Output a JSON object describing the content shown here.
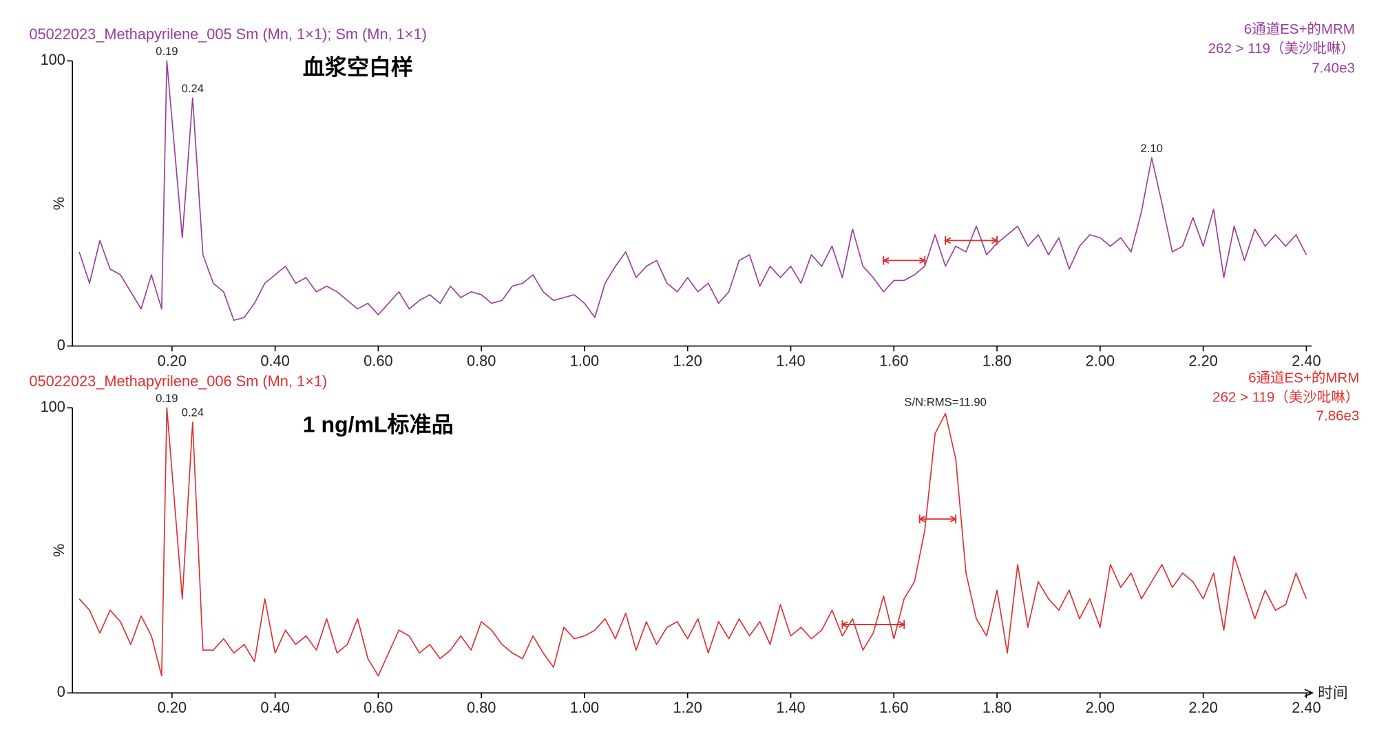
{
  "chart_data": [
    {
      "type": "line",
      "title": "05022023_Methapyrilene_005 Sm (Mn, 1×1); Sm (Mn, 1×1)",
      "info": [
        "6通道ES+的MRM",
        "262 > 119（美沙吡啉）",
        "7.40e3"
      ],
      "sample_label": "血浆空白样",
      "y_label": "%",
      "xlim": [
        0,
        2.4
      ],
      "ylim": [
        0,
        100
      ],
      "yticks": [
        0,
        100
      ],
      "xticks": [
        {
          "value": 0.2,
          "label": "0.20"
        },
        {
          "value": 0.4,
          "label": "0.40"
        },
        {
          "value": 0.6,
          "label": "0.60"
        },
        {
          "value": 0.8,
          "label": "0.80"
        },
        {
          "value": 1.0,
          "label": "1.00"
        },
        {
          "value": 1.2,
          "label": "1.20"
        },
        {
          "value": 1.4,
          "label": "1.40"
        },
        {
          "value": 1.6,
          "label": "1.60"
        },
        {
          "value": 1.8,
          "label": "1.80"
        },
        {
          "value": 2.0,
          "label": "2.00"
        },
        {
          "value": 2.2,
          "label": "2.20"
        },
        {
          "value": 2.4,
          "label": "2.40"
        }
      ],
      "peak_labels": [
        {
          "value": 0.19,
          "label": "0.19"
        },
        {
          "value": 0.24,
          "label": "0.24"
        },
        {
          "value": 2.1,
          "label": "2.10"
        }
      ],
      "annotations": [],
      "intervals": [
        {
          "x": [
            1.58,
            1.66
          ],
          "y": 30
        },
        {
          "x": [
            1.7,
            1.8
          ],
          "y": 37
        }
      ],
      "interval_color": "#e03030",
      "x": [
        0.02,
        0.04,
        0.06,
        0.08,
        0.1,
        0.12,
        0.14,
        0.16,
        0.18,
        0.19,
        0.22,
        0.24,
        0.26,
        0.28,
        0.3,
        0.32,
        0.34,
        0.36,
        0.38,
        0.4,
        0.42,
        0.44,
        0.46,
        0.48,
        0.5,
        0.52,
        0.54,
        0.56,
        0.58,
        0.6,
        0.62,
        0.64,
        0.66,
        0.68,
        0.7,
        0.72,
        0.74,
        0.76,
        0.78,
        0.8,
        0.82,
        0.84,
        0.86,
        0.88,
        0.9,
        0.92,
        0.94,
        0.96,
        0.98,
        1,
        1.02,
        1.04,
        1.06,
        1.08,
        1.1,
        1.12,
        1.14,
        1.16,
        1.18,
        1.2,
        1.22,
        1.24,
        1.26,
        1.28,
        1.3,
        1.32,
        1.34,
        1.36,
        1.38,
        1.4,
        1.42,
        1.44,
        1.46,
        1.48,
        1.5,
        1.52,
        1.54,
        1.56,
        1.58,
        1.6,
        1.62,
        1.64,
        1.66,
        1.68,
        1.7,
        1.72,
        1.74,
        1.76,
        1.78,
        1.8,
        1.82,
        1.84,
        1.86,
        1.88,
        1.9,
        1.92,
        1.94,
        1.96,
        1.98,
        2,
        2.02,
        2.04,
        2.06,
        2.08,
        2.1,
        2.12,
        2.14,
        2.16,
        2.18,
        2.2,
        2.22,
        2.24,
        2.26,
        2.28,
        2.3,
        2.32,
        2.34,
        2.36,
        2.38,
        2.4
      ],
      "series": [
        {
          "color": "#9a3d9e",
          "values": [
            33,
            22,
            37,
            27,
            25,
            19,
            13,
            25,
            13,
            100,
            38,
            87,
            32,
            22,
            19,
            9,
            10,
            15,
            22,
            25,
            28,
            22,
            24,
            19,
            21,
            19,
            16,
            13,
            15,
            11,
            15,
            19,
            13,
            16,
            18,
            15,
            21,
            17,
            19,
            18,
            15,
            16,
            21,
            22,
            25,
            19,
            16,
            17,
            18,
            15,
            10,
            22,
            28,
            33,
            24,
            28,
            30,
            22,
            19,
            24,
            19,
            22,
            15,
            19,
            30,
            32,
            21,
            28,
            24,
            28,
            22,
            32,
            28,
            35,
            24,
            41,
            28,
            24,
            19,
            23,
            23,
            25,
            28,
            39,
            28,
            35,
            33,
            42,
            32,
            36,
            39,
            42,
            35,
            39,
            32,
            38,
            27,
            35,
            39,
            38,
            35,
            38,
            33,
            47,
            66,
            50,
            33,
            35,
            45,
            35,
            48,
            24,
            42,
            30,
            41,
            35,
            39,
            35,
            39,
            32
          ]
        }
      ]
    },
    {
      "type": "line",
      "title": "05022023_Methapyrilene_006 Sm (Mn, 1×1)",
      "info": [
        "6通道ES+的MRM",
        "262 > 119（美沙吡啉）",
        "7.86e3"
      ],
      "sample_label": "1 ng/mL标准品",
      "y_label": "%",
      "x_label": "时间",
      "xlim": [
        0,
        2.4
      ],
      "ylim": [
        0,
        100
      ],
      "yticks": [
        0,
        100
      ],
      "xticks": [
        {
          "value": 0.2,
          "label": "0.20"
        },
        {
          "value": 0.4,
          "label": "0.40"
        },
        {
          "value": 0.6,
          "label": "0.60"
        },
        {
          "value": 0.8,
          "label": "0.80"
        },
        {
          "value": 1.0,
          "label": "1.00"
        },
        {
          "value": 1.2,
          "label": "1.20"
        },
        {
          "value": 1.4,
          "label": "1.40"
        },
        {
          "value": 1.6,
          "label": "1.60"
        },
        {
          "value": 1.8,
          "label": "1.80"
        },
        {
          "value": 2.0,
          "label": "2.00"
        },
        {
          "value": 2.2,
          "label": "2.20"
        },
        {
          "value": 2.4,
          "label": "2.40"
        }
      ],
      "peak_labels": [
        {
          "value": 0.19,
          "label": "0.19"
        },
        {
          "value": 0.24,
          "label": "0.24"
        }
      ],
      "annotations": [
        "S/N:RMS=11.90"
      ],
      "intervals": [
        {
          "x": [
            1.5,
            1.62
          ],
          "y": 24
        },
        {
          "x": [
            1.65,
            1.72
          ],
          "y": 61
        }
      ],
      "interval_color": "#e03030",
      "x": [
        0.02,
        0.04,
        0.06,
        0.08,
        0.1,
        0.12,
        0.14,
        0.16,
        0.18,
        0.19,
        0.22,
        0.24,
        0.26,
        0.28,
        0.3,
        0.32,
        0.34,
        0.36,
        0.38,
        0.4,
        0.42,
        0.44,
        0.46,
        0.48,
        0.5,
        0.52,
        0.54,
        0.56,
        0.58,
        0.6,
        0.62,
        0.64,
        0.66,
        0.68,
        0.7,
        0.72,
        0.74,
        0.76,
        0.78,
        0.8,
        0.82,
        0.84,
        0.86,
        0.88,
        0.9,
        0.92,
        0.94,
        0.96,
        0.98,
        1,
        1.02,
        1.04,
        1.06,
        1.08,
        1.1,
        1.12,
        1.14,
        1.16,
        1.18,
        1.2,
        1.22,
        1.24,
        1.26,
        1.28,
        1.3,
        1.32,
        1.34,
        1.36,
        1.38,
        1.4,
        1.42,
        1.44,
        1.46,
        1.48,
        1.5,
        1.52,
        1.54,
        1.56,
        1.58,
        1.6,
        1.62,
        1.64,
        1.66,
        1.68,
        1.7,
        1.72,
        1.74,
        1.76,
        1.78,
        1.8,
        1.82,
        1.84,
        1.86,
        1.88,
        1.9,
        1.92,
        1.94,
        1.96,
        1.98,
        2,
        2.02,
        2.04,
        2.06,
        2.08,
        2.1,
        2.12,
        2.14,
        2.16,
        2.18,
        2.2,
        2.22,
        2.24,
        2.26,
        2.28,
        2.3,
        2.32,
        2.34,
        2.36,
        2.38,
        2.4
      ],
      "series": [
        {
          "color": "#e03030",
          "values": [
            33,
            29,
            21,
            29,
            25,
            17,
            27,
            20,
            6,
            100,
            33,
            95,
            15,
            15,
            19,
            14,
            17,
            11,
            33,
            14,
            22,
            17,
            20,
            15,
            26,
            14,
            17,
            26,
            12,
            6,
            14,
            22,
            20,
            14,
            17,
            12,
            15,
            20,
            15,
            25,
            22,
            17,
            14,
            12,
            20,
            14,
            9,
            23,
            19,
            20,
            22,
            26,
            19,
            28,
            15,
            25,
            17,
            23,
            25,
            19,
            26,
            14,
            25,
            19,
            26,
            20,
            25,
            17,
            31,
            20,
            23,
            19,
            22,
            29,
            20,
            26,
            15,
            21,
            34,
            19,
            33,
            39,
            57,
            91,
            98,
            82,
            42,
            26,
            20,
            36,
            14,
            45,
            23,
            39,
            33,
            29,
            36,
            26,
            33,
            23,
            45,
            37,
            42,
            33,
            39,
            45,
            37,
            42,
            39,
            33,
            42,
            22,
            48,
            37,
            26,
            36,
            29,
            31,
            42,
            33
          ]
        }
      ]
    }
  ]
}
